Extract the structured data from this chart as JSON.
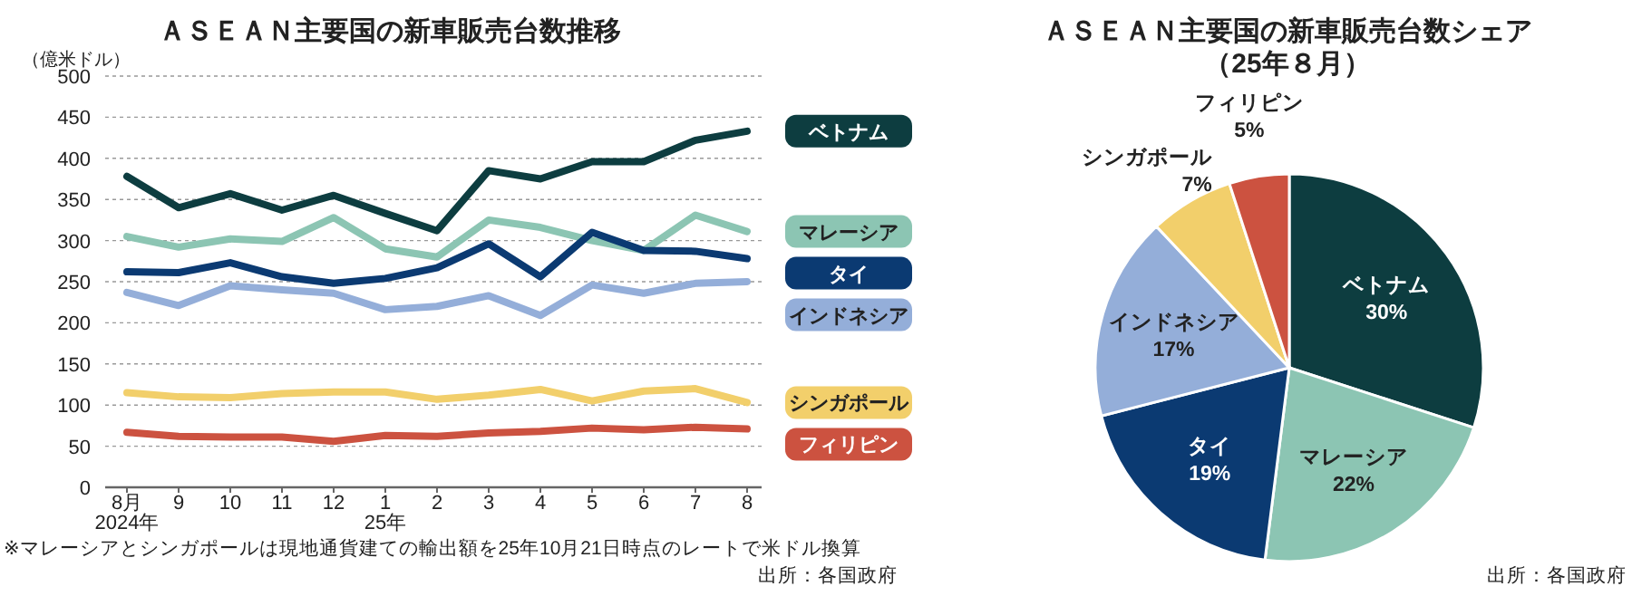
{
  "chart_data": [
    {
      "type": "line",
      "title": "ＡＳＥＡＮ主要国の新車販売台数推移",
      "ylabel": "（億米ドル）",
      "categories": [
        "8月\n2024年",
        "9",
        "10",
        "11",
        "12",
        "1\n25年",
        "2",
        "3",
        "4",
        "5",
        "6",
        "7",
        "8"
      ],
      "series": [
        {
          "name": "ベトナム",
          "color": "#0d3d40",
          "values": [
            378,
            340,
            357,
            337,
            355,
            333,
            312,
            385,
            375,
            396,
            396,
            422,
            433
          ]
        },
        {
          "name": "マレーシア",
          "color": "#8cc5b3",
          "values": [
            305,
            292,
            302,
            299,
            328,
            290,
            280,
            325,
            316,
            300,
            288,
            331,
            311
          ]
        },
        {
          "name": "タイ",
          "color": "#0b3a72",
          "values": [
            262,
            261,
            273,
            256,
            248,
            254,
            267,
            296,
            256,
            310,
            288,
            287,
            278
          ]
        },
        {
          "name": "インドネシア",
          "color": "#94aed9",
          "values": [
            237,
            221,
            245,
            240,
            236,
            216,
            220,
            233,
            209,
            246,
            236,
            248,
            250
          ]
        },
        {
          "name": "シンガポール",
          "color": "#f2cf6b",
          "values": [
            115,
            110,
            109,
            114,
            116,
            116,
            107,
            112,
            119,
            105,
            117,
            120,
            103
          ]
        },
        {
          "name": "フィリピン",
          "color": "#cc5240",
          "values": [
            67,
            62,
            61,
            61,
            56,
            63,
            62,
            66,
            68,
            72,
            70,
            73,
            71
          ]
        }
      ],
      "ylim": [
        0,
        500
      ],
      "yticks": [
        0,
        50,
        100,
        150,
        200,
        250,
        300,
        350,
        400,
        450,
        500
      ],
      "grid": "y",
      "legend": "right",
      "annotations": [
        "※マレーシアとシンガポールは現地通貨建ての輸出額を25年10月21日時点のレートで米ドル換算",
        "出所：各国政府"
      ]
    },
    {
      "type": "pie",
      "title": "ＡＳＥＡＮ主要国の新車販売台数シェア",
      "subtitle": "（25年８月）",
      "categories": [
        "ベトナム",
        "マレーシア",
        "タイ",
        "インドネシア",
        "シンガポール",
        "フィリピン"
      ],
      "values": [
        30,
        22,
        19,
        17,
        7,
        5
      ],
      "value_labels": [
        "30%",
        "22%",
        "19%",
        "17%",
        "7%",
        "5%"
      ],
      "colors": [
        "#0d3d40",
        "#8cc5b3",
        "#0b3a72",
        "#94aed9",
        "#f2cf6b",
        "#cc5240"
      ],
      "annotations": [
        "出所：各国政府"
      ]
    }
  ]
}
